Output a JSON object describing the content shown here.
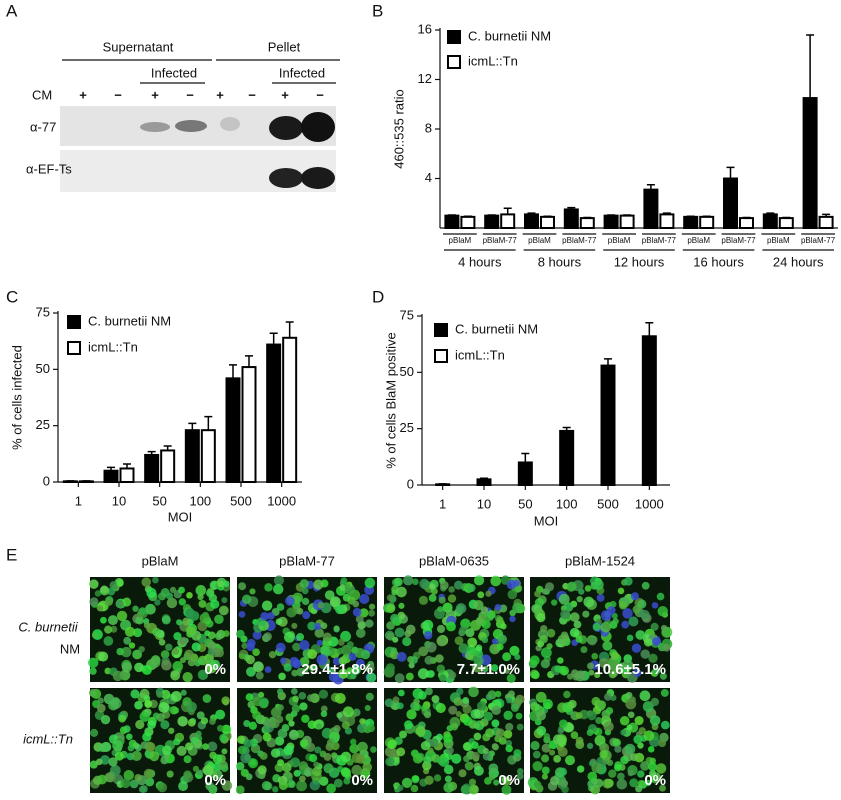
{
  "panel_a": {
    "label": "A",
    "fractions": [
      "Supernatant",
      "Pellet"
    ],
    "infected": [
      "Infected",
      "Infected"
    ],
    "cm_label": "CM",
    "cm_signs": [
      "+",
      "−",
      "+",
      "−",
      "+",
      "−",
      "+",
      "−"
    ],
    "antibodies": [
      "α-77",
      "α-EF-Ts"
    ]
  },
  "chart_data": [
    {
      "type": "bar",
      "label": "B",
      "y_label": "460::535 ratio",
      "groups": [
        "4 hours",
        "8 hours",
        "12 hours",
        "16 hours",
        "24 hours"
      ],
      "categories": [
        "pBlaM",
        "pBlaM-77",
        "pBlaM",
        "pBlaM-77",
        "pBlaM",
        "pBlaM-77",
        "pBlaM",
        "pBlaM-77",
        "pBlaM",
        "pBlaM-77"
      ],
      "series": [
        {
          "name": "C. burnetii NM",
          "color": "#000000",
          "values": [
            1.0,
            1.0,
            1.1,
            1.5,
            1.0,
            3.1,
            0.9,
            4.0,
            1.1,
            10.5
          ],
          "errors": [
            0.05,
            0.05,
            0.1,
            0.15,
            0.05,
            0.4,
            0.05,
            0.9,
            0.1,
            5.1
          ]
        },
        {
          "name": "icmL::Tn",
          "color": "#ffffff",
          "values": [
            0.9,
            1.1,
            0.9,
            0.8,
            1.0,
            1.1,
            0.9,
            0.8,
            0.8,
            0.9
          ],
          "errors": [
            0.05,
            0.5,
            0.05,
            0.05,
            0.05,
            0.1,
            0.05,
            0.05,
            0.05,
            0.2
          ]
        }
      ],
      "ylim": [
        0,
        16
      ],
      "yticks": [
        4,
        8,
        12,
        16
      ]
    },
    {
      "type": "bar",
      "label": "C",
      "y_label": "% of cells infected",
      "x_label": "MOI",
      "categories": [
        "1",
        "10",
        "50",
        "100",
        "500",
        "1000"
      ],
      "series": [
        {
          "name": "C. burnetii NM",
          "color": "#000000",
          "values": [
            0.3,
            5,
            12,
            23,
            46,
            61
          ],
          "errors": [
            0.2,
            1.5,
            1.5,
            3,
            6,
            5
          ]
        },
        {
          "name": "icmL::Tn",
          "color": "#ffffff",
          "values": [
            0.3,
            6,
            14,
            23,
            51,
            64
          ],
          "errors": [
            0.2,
            2,
            2,
            6,
            5,
            7
          ]
        }
      ],
      "ylim": [
        0,
        75
      ],
      "yticks": [
        0,
        25,
        50,
        75
      ]
    },
    {
      "type": "bar",
      "label": "D",
      "y_label": "% of cells BlaM positive",
      "x_label": "MOI",
      "categories": [
        "1",
        "10",
        "50",
        "100",
        "500",
        "1000"
      ],
      "series": [
        {
          "name": "C. burnetii NM",
          "color": "#000000",
          "values": [
            0.3,
            2.5,
            10,
            24,
            53,
            66
          ],
          "errors": [
            0.2,
            0.5,
            4,
            1.5,
            3,
            6
          ]
        },
        {
          "name": "icmL::Tn",
          "color": "#ffffff",
          "values": [
            null,
            null,
            null,
            null,
            null,
            null
          ],
          "errors": [
            null,
            null,
            null,
            null,
            null,
            null
          ]
        }
      ],
      "ylim": [
        0,
        75
      ],
      "yticks": [
        0,
        25,
        50,
        75
      ]
    }
  ],
  "panel_e": {
    "label": "E",
    "columns": [
      "pBlaM",
      "pBlaM-77",
      "pBlaM-0635",
      "pBlaM-1524"
    ],
    "rows": [
      {
        "label": [
          "C. burnetii",
          "NM"
        ],
        "percentages": [
          "0%",
          "29.4±1.8%",
          "7.7±1.0%",
          "10.6±5.1%"
        ]
      },
      {
        "label": [
          "icmL::Tn"
        ],
        "percentages": [
          "0%",
          "0%",
          "0%",
          "0%"
        ]
      }
    ]
  }
}
